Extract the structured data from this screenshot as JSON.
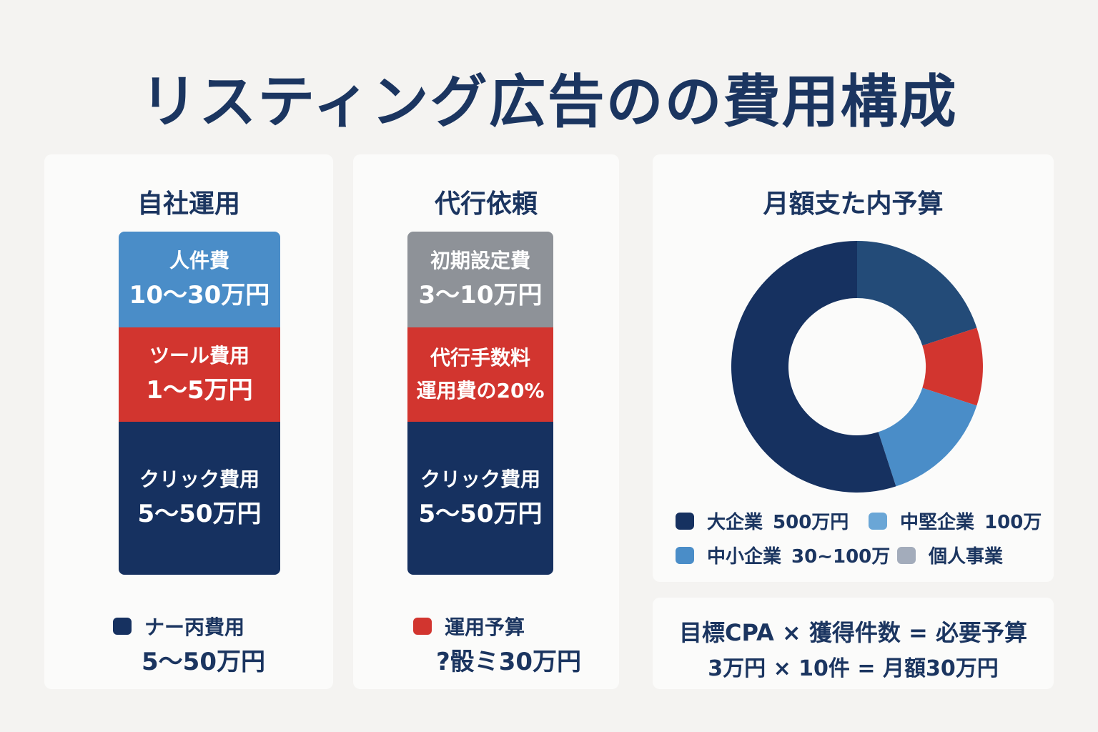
{
  "title": "リスティング広告のの費用構成",
  "self_managed": {
    "heading": "自社運用",
    "segments": [
      {
        "name": "人件費",
        "amount": "10〜30万円"
      },
      {
        "name": "ツール費用",
        "amount": "1〜5万円"
      },
      {
        "name": "クリック費用",
        "amount": "5〜50万円"
      }
    ],
    "legend_label": "ナー丙費用",
    "legend_amount": "5〜50万円"
  },
  "agency": {
    "heading": "代行依頼",
    "segments": [
      {
        "name": "初期設定費",
        "amount": "3〜10万円"
      },
      {
        "name": "代行手数料",
        "amount": "運用費の20%"
      },
      {
        "name": "クリック費用",
        "amount": "5〜50万円"
      }
    ],
    "legend_label": "運用予算",
    "legend_amount": "?骰ミ30万円"
  },
  "colors": {
    "navy": "#163160",
    "mid_navy": "#234b78",
    "red": "#d2352f",
    "light_blue": "#4a8dc8",
    "pale_blue": "#6aa6d6",
    "gray": "#8e9298",
    "gray_blue": "#a3acbb"
  },
  "chart_data": {
    "type": "pie",
    "title": "月額支た内予算",
    "slices": [
      {
        "label": "大企業",
        "value": 55,
        "color": "#163160"
      },
      {
        "label": "",
        "value": 20,
        "color": "#234b78"
      },
      {
        "label": "",
        "value": 10,
        "color": "#d2352f"
      },
      {
        "label": "",
        "value": 15,
        "color": "#4a8dc8"
      }
    ],
    "donut": true,
    "legend": [
      {
        "label": "大企業",
        "amount": "500万円",
        "color": "#163160"
      },
      {
        "label": "中堅企業",
        "amount": "100万",
        "color": "#6aa6d6"
      },
      {
        "label": "中小企業",
        "amount": "30~100万",
        "color": "#4a8dc8"
      },
      {
        "label": "個人事業",
        "amount": "",
        "color": "#a3acbb"
      }
    ],
    "legend_position": "bottom"
  },
  "formula": {
    "line1": "目標CPA × 獲得件数 = 必要予算",
    "line2": "3万円 × 10件 = 月額30万円"
  }
}
